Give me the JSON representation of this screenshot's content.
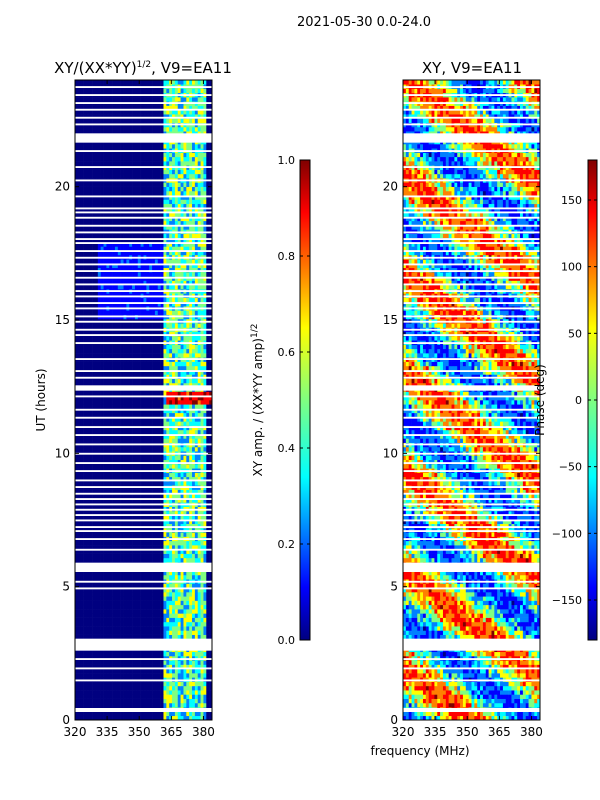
{
  "figure_title": "2021-05-30 0.0-24.0",
  "shared_xlabel": "frequency (MHz)",
  "colors": {
    "jet": [
      "#000080",
      "#0000ff",
      "#0080ff",
      "#00ffff",
      "#80ff80",
      "#ffff00",
      "#ff8000",
      "#ff0000",
      "#800000"
    ],
    "bad_data": "#ffffff",
    "frame": "#000000"
  },
  "chart_data": [
    {
      "type": "heatmap",
      "title_main": "XY/(XX*YY)",
      "title_sup": "1/2",
      "title_tail": ", V9=EA11",
      "xlabel": "",
      "ylabel": "UT (hours)",
      "xlim": [
        320,
        384
      ],
      "ylim": [
        0,
        24
      ],
      "xticks": [
        "320",
        "335",
        "350",
        "365",
        "380"
      ],
      "xtick_values": [
        320,
        335,
        350,
        365,
        380
      ],
      "yticks": [
        "0",
        "5",
        "10",
        "15",
        "20"
      ],
      "ytick_values": [
        0,
        5,
        10,
        15,
        20
      ],
      "colorbar": {
        "label_main": "XY amp. / (XX*YY amp)",
        "label_sup": "1/2",
        "range": [
          0.0,
          1.0
        ],
        "ticks": [
          "0.0",
          "0.2",
          "0.4",
          "0.6",
          "0.8",
          "1.0"
        ],
        "tick_values": [
          0.0,
          0.2,
          0.4,
          0.6,
          0.8,
          1.0
        ]
      },
      "flagged_hours": [
        [
          0.3,
          0.45
        ],
        [
          1.45,
          1.52
        ],
        [
          1.9,
          1.97
        ],
        [
          2.25,
          2.32
        ],
        [
          2.6,
          3.05
        ],
        [
          4.9,
          4.97
        ],
        [
          5.15,
          5.22
        ],
        [
          5.55,
          5.9
        ],
        [
          6.35,
          6.42
        ],
        [
          6.75,
          6.82
        ],
        [
          7.05,
          7.12
        ],
        [
          7.2,
          7.27
        ],
        [
          7.45,
          7.52
        ],
        [
          7.65,
          7.72
        ],
        [
          7.85,
          7.92
        ],
        [
          8.05,
          8.12
        ],
        [
          8.25,
          8.32
        ],
        [
          8.45,
          8.52
        ],
        [
          8.7,
          8.77
        ],
        [
          8.95,
          9.02
        ],
        [
          9.3,
          9.37
        ],
        [
          9.6,
          9.67
        ],
        [
          9.95,
          10.02
        ],
        [
          10.3,
          10.37
        ],
        [
          10.65,
          10.72
        ],
        [
          10.95,
          11.02
        ],
        [
          11.3,
          11.37
        ],
        [
          11.6,
          11.67
        ],
        [
          12.1,
          12.17
        ],
        [
          12.35,
          12.55
        ],
        [
          12.8,
          12.87
        ],
        [
          13.05,
          13.12
        ],
        [
          13.5,
          13.57
        ],
        [
          14.1,
          14.17
        ],
        [
          14.4,
          14.47
        ],
        [
          14.6,
          14.67
        ],
        [
          14.9,
          14.97
        ],
        [
          15.1,
          15.17
        ],
        [
          15.4,
          15.47
        ],
        [
          15.6,
          15.67
        ],
        [
          15.85,
          15.92
        ],
        [
          16.05,
          16.12
        ],
        [
          16.3,
          16.37
        ],
        [
          16.55,
          16.62
        ],
        [
          16.8,
          16.87
        ],
        [
          17.05,
          17.12
        ],
        [
          17.3,
          17.37
        ],
        [
          17.55,
          17.62
        ],
        [
          17.85,
          17.92
        ],
        [
          18.0,
          18.07
        ],
        [
          18.25,
          18.32
        ],
        [
          18.5,
          18.57
        ],
        [
          18.8,
          18.87
        ],
        [
          19.0,
          19.07
        ],
        [
          19.15,
          19.22
        ],
        [
          19.6,
          19.67
        ],
        [
          20.2,
          20.27
        ],
        [
          20.7,
          20.77
        ],
        [
          21.3,
          21.37
        ],
        [
          21.65,
          22.0
        ],
        [
          22.3,
          22.37
        ],
        [
          22.55,
          22.62
        ],
        [
          22.85,
          22.92
        ],
        [
          23.1,
          23.17
        ],
        [
          23.4,
          23.47
        ],
        [
          23.7,
          23.77
        ]
      ]
    },
    {
      "type": "heatmap",
      "title_main": "XY, V9=EA11",
      "xlabel": "frequency (MHz)",
      "ylabel": "",
      "xlim": [
        320,
        384
      ],
      "ylim": [
        0,
        24
      ],
      "xticks": [
        "320",
        "335",
        "350",
        "365",
        "380"
      ],
      "xtick_values": [
        320,
        335,
        350,
        365,
        380
      ],
      "yticks": [
        "0",
        "5",
        "10",
        "15",
        "20"
      ],
      "ytick_values": [
        0,
        5,
        10,
        15,
        20
      ],
      "colorbar": {
        "label_main": "Phase (deg)",
        "range": [
          -180,
          180
        ],
        "ticks": [
          "−150",
          "−100",
          "−50",
          "0",
          "50",
          "100",
          "150"
        ],
        "tick_values": [
          -150,
          -100,
          -50,
          0,
          50,
          100,
          150
        ]
      },
      "flagged_hours": [
        [
          0.3,
          0.45
        ],
        [
          1.45,
          1.52
        ],
        [
          1.9,
          1.97
        ],
        [
          2.25,
          2.32
        ],
        [
          2.6,
          3.05
        ],
        [
          4.9,
          4.97
        ],
        [
          5.15,
          5.22
        ],
        [
          5.55,
          5.9
        ],
        [
          6.35,
          6.42
        ],
        [
          6.75,
          6.82
        ],
        [
          7.05,
          7.12
        ],
        [
          7.2,
          7.27
        ],
        [
          7.45,
          7.52
        ],
        [
          7.65,
          7.72
        ],
        [
          7.85,
          7.92
        ],
        [
          8.05,
          8.12
        ],
        [
          8.25,
          8.32
        ],
        [
          8.45,
          8.52
        ],
        [
          8.7,
          8.77
        ],
        [
          8.95,
          9.02
        ],
        [
          9.3,
          9.37
        ],
        [
          9.6,
          9.67
        ],
        [
          9.95,
          10.02
        ],
        [
          10.3,
          10.37
        ],
        [
          10.65,
          10.72
        ],
        [
          10.95,
          11.02
        ],
        [
          11.3,
          11.37
        ],
        [
          11.6,
          11.67
        ],
        [
          12.1,
          12.17
        ],
        [
          12.35,
          12.55
        ],
        [
          12.8,
          12.87
        ],
        [
          13.05,
          13.12
        ],
        [
          13.5,
          13.57
        ],
        [
          14.1,
          14.17
        ],
        [
          14.4,
          14.47
        ],
        [
          14.6,
          14.67
        ],
        [
          14.9,
          14.97
        ],
        [
          15.1,
          15.17
        ],
        [
          15.4,
          15.47
        ],
        [
          15.6,
          15.67
        ],
        [
          15.85,
          15.92
        ],
        [
          16.05,
          16.12
        ],
        [
          16.3,
          16.37
        ],
        [
          16.55,
          16.62
        ],
        [
          16.8,
          16.87
        ],
        [
          17.05,
          17.12
        ],
        [
          17.3,
          17.37
        ],
        [
          17.55,
          17.62
        ],
        [
          17.85,
          17.92
        ],
        [
          18.0,
          18.07
        ],
        [
          18.25,
          18.32
        ],
        [
          18.5,
          18.57
        ],
        [
          18.8,
          18.87
        ],
        [
          19.0,
          19.07
        ],
        [
          19.15,
          19.22
        ],
        [
          19.6,
          19.67
        ],
        [
          20.2,
          20.27
        ],
        [
          20.7,
          20.77
        ],
        [
          21.3,
          21.37
        ],
        [
          21.65,
          22.0
        ],
        [
          22.3,
          22.37
        ],
        [
          22.55,
          22.62
        ],
        [
          22.85,
          22.92
        ],
        [
          23.1,
          23.17
        ],
        [
          23.4,
          23.47
        ],
        [
          23.7,
          23.77
        ]
      ]
    }
  ]
}
